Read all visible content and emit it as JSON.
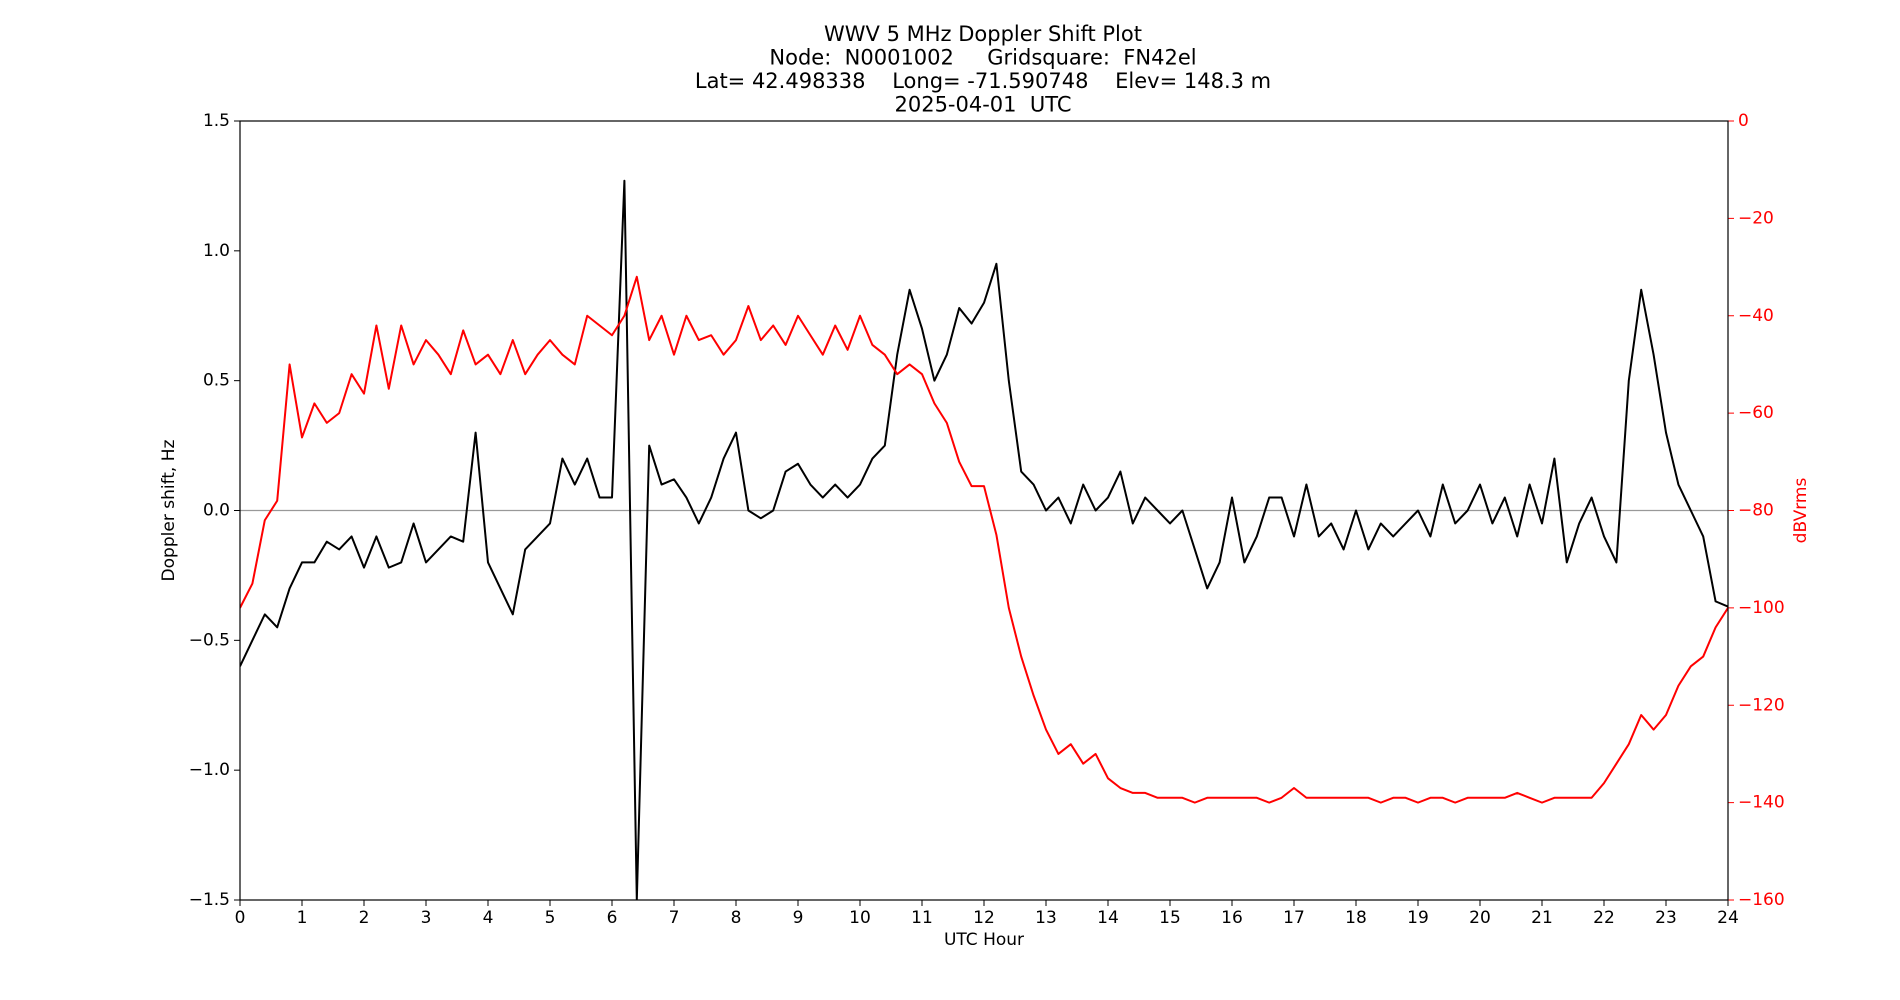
{
  "chart_data": {
    "type": "line",
    "title": [
      "WWV 5 MHz Doppler Shift Plot",
      "Node:  N0001002     Gridsquare:  FN42el",
      "Lat= 42.498338    Long= -71.590748    Elev= 148.3 m",
      "2025-04-01  UTC"
    ],
    "xlabel": "UTC Hour",
    "ylabel": "Doppler shift, Hz",
    "y2label": "dBVrms",
    "x": [
      0,
      0.2,
      0.4,
      0.6,
      0.8,
      1,
      1.2,
      1.4,
      1.6,
      1.8,
      2,
      2.2,
      2.4,
      2.6,
      2.8,
      3,
      3.2,
      3.4,
      3.6,
      3.8,
      4,
      4.2,
      4.4,
      4.6,
      4.8,
      5,
      5.2,
      5.4,
      5.6,
      5.8,
      6,
      6.2,
      6.4,
      6.6,
      6.8,
      7,
      7.2,
      7.4,
      7.6,
      7.8,
      8,
      8.2,
      8.4,
      8.6,
      8.8,
      9,
      9.2,
      9.4,
      9.6,
      9.8,
      10,
      10.2,
      10.4,
      10.6,
      10.8,
      11,
      11.2,
      11.4,
      11.6,
      11.8,
      12,
      12.2,
      12.4,
      12.6,
      12.8,
      13,
      13.2,
      13.4,
      13.6,
      13.8,
      14,
      14.2,
      14.4,
      14.6,
      14.8,
      15,
      15.2,
      15.4,
      15.6,
      15.8,
      16,
      16.2,
      16.4,
      16.6,
      16.8,
      17,
      17.2,
      17.4,
      17.6,
      17.8,
      18,
      18.2,
      18.4,
      18.6,
      18.8,
      19,
      19.2,
      19.4,
      19.6,
      19.8,
      20,
      20.2,
      20.4,
      20.6,
      20.8,
      21,
      21.2,
      21.4,
      21.6,
      21.8,
      22,
      22.2,
      22.4,
      22.6,
      22.8,
      23,
      23.2,
      23.4,
      23.6,
      23.8,
      24
    ],
    "series": [
      {
        "name": "Doppler shift",
        "color": "#000000",
        "values": [
          -0.6,
          -0.5,
          -0.4,
          -0.45,
          -0.3,
          -0.2,
          -0.2,
          -0.12,
          -0.15,
          -0.1,
          -0.22,
          -0.1,
          -0.22,
          -0.2,
          -0.05,
          -0.2,
          -0.15,
          -0.1,
          -0.12,
          0.3,
          -0.2,
          -0.3,
          -0.4,
          -0.15,
          -0.1,
          -0.05,
          0.2,
          0.1,
          0.2,
          0.05,
          0.05,
          1.27,
          -1.5,
          0.25,
          0.1,
          0.12,
          0.05,
          -0.05,
          0.05,
          0.2,
          0.3,
          0.0,
          -0.03,
          0.0,
          0.15,
          0.18,
          0.1,
          0.05,
          0.1,
          0.05,
          0.1,
          0.2,
          0.25,
          0.6,
          0.85,
          0.7,
          0.5,
          0.6,
          0.78,
          0.72,
          0.8,
          0.95,
          0.5,
          0.15,
          0.1,
          0.0,
          0.05,
          -0.05,
          0.1,
          0.0,
          0.05,
          0.15,
          -0.05,
          0.05,
          0.0,
          -0.05,
          0.0,
          -0.15,
          -0.3,
          -0.2,
          0.05,
          -0.2,
          -0.1,
          0.05,
          0.05,
          -0.1,
          0.1,
          -0.1,
          -0.05,
          -0.15,
          0.0,
          -0.15,
          -0.05,
          -0.1,
          -0.05,
          0.0,
          -0.1,
          0.1,
          -0.05,
          0.0,
          0.1,
          -0.05,
          0.05,
          -0.1,
          0.1,
          -0.05,
          0.2,
          -0.2,
          -0.05,
          0.05,
          -0.1,
          -0.2,
          0.5,
          0.85,
          0.6,
          0.3,
          0.1,
          0.0,
          -0.1,
          -0.35,
          -0.37
        ]
      },
      {
        "name": "dBVrms",
        "color": "#ff0000",
        "axis": "y2",
        "values": [
          -100,
          -95,
          -82,
          -78,
          -50,
          -65,
          -58,
          -62,
          -60,
          -52,
          -56,
          -42,
          -55,
          -42,
          -50,
          -45,
          -48,
          -52,
          -43,
          -50,
          -48,
          -52,
          -45,
          -52,
          -48,
          -45,
          -48,
          -50,
          -40,
          -42,
          -44,
          -40,
          -32,
          -45,
          -40,
          -48,
          -40,
          -45,
          -44,
          -48,
          -45,
          -38,
          -45,
          -42,
          -46,
          -40,
          -44,
          -48,
          -42,
          -47,
          -40,
          -46,
          -48,
          -52,
          -50,
          -52,
          -58,
          -62,
          -70,
          -75,
          -75,
          -85,
          -100,
          -110,
          -118,
          -125,
          -130,
          -128,
          -132,
          -130,
          -135,
          -137,
          -138,
          -138,
          -139,
          -139,
          -139,
          -140,
          -139,
          -139,
          -139,
          -139,
          -139,
          -140,
          -139,
          -137,
          -139,
          -139,
          -139,
          -139,
          -139,
          -139,
          -140,
          -139,
          -139,
          -140,
          -139,
          -139,
          -140,
          -139,
          -139,
          -139,
          -139,
          -138,
          -139,
          -140,
          -139,
          -139,
          -139,
          -139,
          -136,
          -132,
          -128,
          -122,
          -125,
          -122,
          -116,
          -112,
          -110,
          -104,
          -100
        ]
      }
    ],
    "xlim": [
      0,
      24
    ],
    "xticks": [
      0,
      1,
      2,
      3,
      4,
      5,
      6,
      7,
      8,
      9,
      10,
      11,
      12,
      13,
      14,
      15,
      16,
      17,
      18,
      19,
      20,
      21,
      22,
      23,
      24
    ],
    "ylim": [
      -1.5,
      1.5
    ],
    "yticks": [
      {
        "value": -1.5,
        "label": "−1.5"
      },
      {
        "value": -1,
        "label": "−1.0"
      },
      {
        "value": -0.5,
        "label": "−0.5"
      },
      {
        "value": 0,
        "label": "0.0"
      },
      0.5,
      {
        "value": 1,
        "label": "1.0"
      },
      1.5
    ],
    "y2lim": [
      -160,
      0
    ],
    "y2ticks": [
      {
        "value": -160,
        "label": "−160"
      },
      {
        "value": -140,
        "label": "−140"
      },
      {
        "value": -120,
        "label": "−120"
      },
      {
        "value": -100,
        "label": "−100"
      },
      {
        "value": -80,
        "label": "−80"
      },
      {
        "value": -60,
        "label": "−60"
      },
      {
        "value": -40,
        "label": "−40"
      },
      {
        "value": -20,
        "label": "−20"
      },
      0
    ],
    "y2color": "#ff0000",
    "hline": 0,
    "hline_color": "#999999"
  }
}
